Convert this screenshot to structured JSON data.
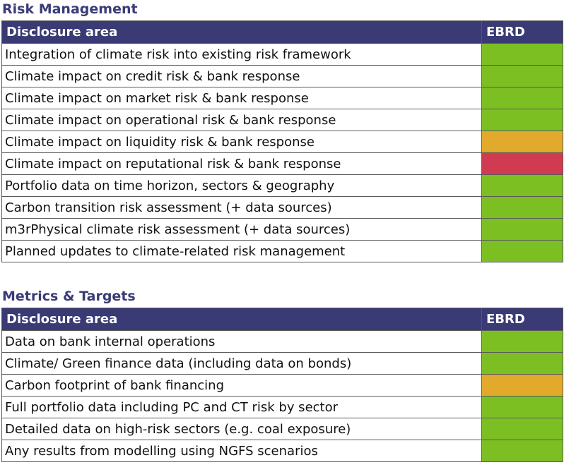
{
  "colors": {
    "header_bg": "#3a3a74",
    "title_text": "#3a3b78",
    "green": "#7cbf23",
    "amber": "#e1aa2c",
    "red": "#d13b52"
  },
  "sections": [
    {
      "title": "Risk Management",
      "headers": {
        "area": "Disclosure area",
        "status": "EBRD"
      },
      "rows": [
        {
          "area": "Integration of climate risk into existing risk framework",
          "status": "green"
        },
        {
          "area": "Climate impact on credit risk & bank response",
          "status": "green"
        },
        {
          "area": "Climate impact on market risk & bank response",
          "status": "green"
        },
        {
          "area": "Climate impact on operational risk & bank response",
          "status": "green"
        },
        {
          "area": "Climate impact on liquidity risk & bank response",
          "status": "amber"
        },
        {
          "area": "Climate impact on reputational risk & bank response",
          "status": "red"
        },
        {
          "area": "Portfolio data on time horizon, sectors & geography",
          "status": "green"
        },
        {
          "area": "Carbon transition risk assessment (+ data sources)",
          "status": "green"
        },
        {
          "area": "m3rPhysical climate risk assessment (+ data sources)",
          "status": "green"
        },
        {
          "area": "Planned updates to climate-related risk management",
          "status": "green"
        }
      ]
    },
    {
      "title": "Metrics & Targets",
      "headers": {
        "area": "Disclosure area",
        "status": "EBRD"
      },
      "rows": [
        {
          "area": "Data on bank internal operations",
          "status": "green"
        },
        {
          "area": "Climate/ Green finance data (including data on bonds)",
          "status": "green"
        },
        {
          "area": "Carbon footprint of bank financing",
          "status": "amber"
        },
        {
          "area": "Full portfolio data including PC and CT risk by sector",
          "status": "green"
        },
        {
          "area": "Detailed data on high-risk sectors (e.g. coal exposure)",
          "status": "green"
        },
        {
          "area": "Any results from modelling using NGFS scenarios",
          "status": "green"
        }
      ]
    }
  ]
}
